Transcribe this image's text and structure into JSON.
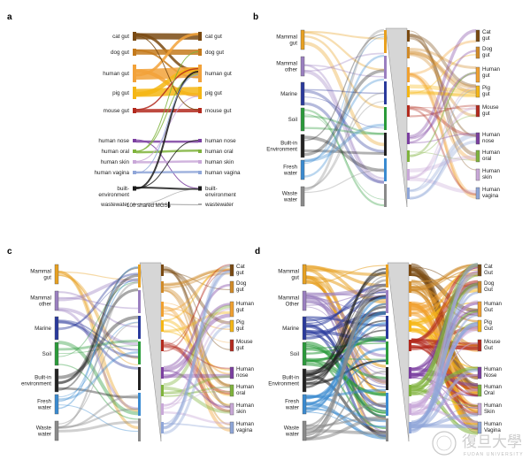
{
  "panels": {
    "a": {
      "letter": "a",
      "left_labels": [
        "cat gut",
        "dog gut",
        "human gut",
        "pig gut",
        "mouse gut",
        "human nose",
        "human oral",
        "human skin",
        "human vagina",
        "built-\nenvironment",
        "wastewater"
      ],
      "right_labels": [
        "cat gut",
        "dog gut",
        "human gut",
        "pig gut",
        "mouse gut",
        "human nose",
        "human oral",
        "human skin",
        "human vagina",
        "built-\nenvironment",
        "wastewater"
      ],
      "scale_label": "100 shared MGSs",
      "colors": [
        "#7a4a12",
        "#c47a1c",
        "#f2a23a",
        "#f5b614",
        "#b32a1e",
        "#7b3fa0",
        "#7fb33c",
        "#c9a8d8",
        "#8fa6d8",
        "#1a1a1a",
        "#a8a8a8"
      ]
    },
    "b": {
      "letter": "b",
      "left_labels": [
        "Mammal\ngut",
        "Mammal\nother",
        "Marine",
        "Soil",
        "Built-in\nEnvironment",
        "Fresh\nwater",
        "Waste\nwater"
      ],
      "right_labels": [
        "Cat\ngut",
        "Dog\ngut",
        "Human\ngut",
        "Pig\ngut",
        "Mouse\ngut",
        "Human\nnose",
        "Human\noral",
        "Human\nskin",
        "Human\nvagina"
      ]
    },
    "c": {
      "letter": "c",
      "left_labels": [
        "Mammal\ngut",
        "Mammal\nother",
        "Marine",
        "Soil",
        "Built-in\nenvironment",
        "Fresh\nwater",
        "Waste\nwater"
      ],
      "right_labels": [
        "Cat\ngut",
        "Dog\ngut",
        "Human\ngut",
        "Pig\ngut",
        "Mouse\ngut",
        "Human\nnose",
        "Human\noral",
        "Human\nskin",
        "Human\nvagina"
      ]
    },
    "d": {
      "letter": "d",
      "left_labels": [
        "Mammal\ngut",
        "Mammal\nOther",
        "Marine",
        "Soil",
        "Built-in\nEnvironment",
        "Fresh\nwater",
        "Waste\nwater"
      ],
      "right_labels": [
        "Cat\nGut",
        "Dog\nGut",
        "Human\nGut",
        "Pig\nGut",
        "Mouse\nGut",
        "Human\nNose",
        "Human\nOral",
        "Human\nSkin",
        "Human\nVagina"
      ]
    }
  },
  "left_colors": [
    "#e8a020",
    "#9a7fc0",
    "#2a3a9c",
    "#2a9a3a",
    "#222222",
    "#3a8ad0",
    "#8a8a8a"
  ],
  "right_colors": [
    "#7a4a12",
    "#d08a28",
    "#f0a030",
    "#f5b614",
    "#b32a1e",
    "#7b3fa0",
    "#7fb33c",
    "#c9a8d8",
    "#8fa6d8"
  ],
  "watermark": {
    "chinese": "復旦大學",
    "english": "FUDAN UNIVERSITY"
  }
}
